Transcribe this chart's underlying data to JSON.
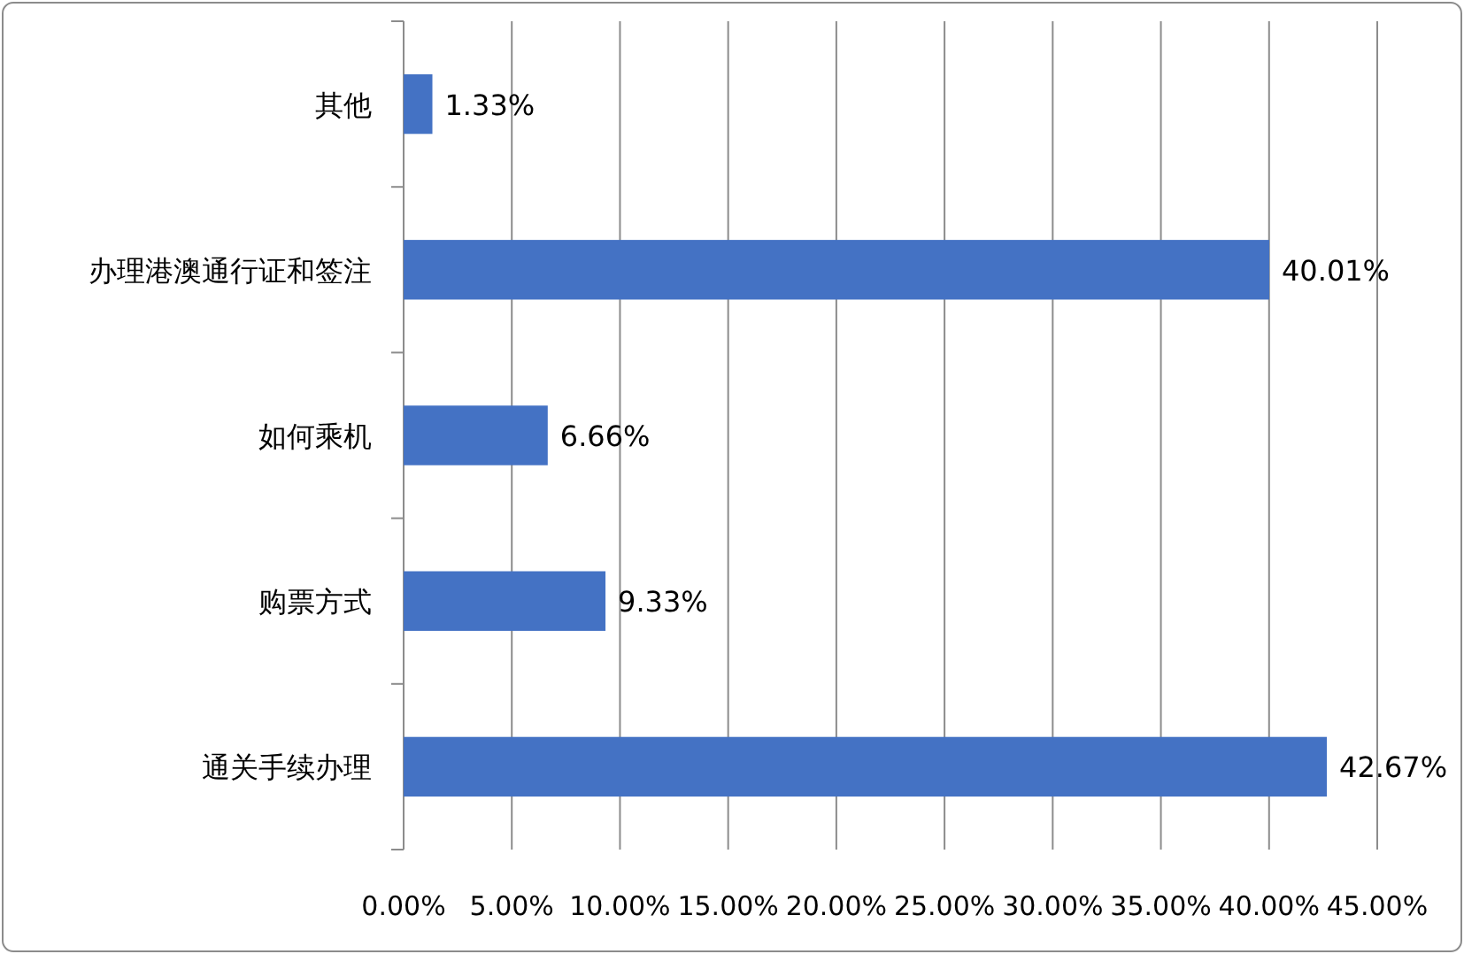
{
  "chart_data": {
    "type": "bar",
    "orientation": "horizontal",
    "categories": [
      "其他",
      "办理港澳通行证和签注",
      "如何乘机",
      "购票方式",
      "通关手续办理"
    ],
    "values": [
      1.33,
      40.01,
      6.66,
      9.33,
      42.67
    ],
    "value_labels": [
      "1.33%",
      "40.01%",
      "6.66%",
      "9.33%",
      "42.67%"
    ],
    "color": "#4472c4",
    "xlim": [
      0,
      45
    ],
    "xticks": [
      {
        "value": 0,
        "label": "0.00%"
      },
      {
        "value": 5,
        "label": "5.00%"
      },
      {
        "value": 10,
        "label": "10.00%"
      },
      {
        "value": 15,
        "label": "15.00%"
      },
      {
        "value": 20,
        "label": "20.00%"
      },
      {
        "value": 25,
        "label": "25.00%"
      },
      {
        "value": 30,
        "label": "30.00%"
      },
      {
        "value": 35,
        "label": "35.00%"
      },
      {
        "value": 40,
        "label": "40.00%"
      },
      {
        "value": 45,
        "label": "45.00%"
      }
    ],
    "grid": "x"
  }
}
